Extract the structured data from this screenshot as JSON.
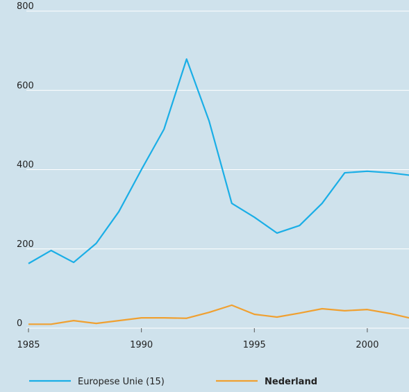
{
  "chart_data": {
    "type": "line",
    "x": [
      1985,
      1986,
      1987,
      1988,
      1989,
      1990,
      1991,
      1992,
      1993,
      1994,
      1995,
      1996,
      1997,
      1998,
      1999,
      2000,
      2001,
      2002
    ],
    "series": [
      {
        "name": "Europese Unie (15)",
        "color": "#1aaee6",
        "values": [
          163,
          196,
          166,
          214,
          294,
          400,
          502,
          679,
          522,
          315,
          280,
          240,
          259,
          315,
          392,
          396,
          392,
          385
        ]
      },
      {
        "name": "Nederland",
        "color": "#f0a030",
        "values": [
          10,
          10,
          19,
          12,
          19,
          26,
          26,
          25,
          40,
          58,
          35,
          28,
          38,
          49,
          44,
          47,
          37,
          24
        ]
      }
    ],
    "xlim": [
      1985,
      2002
    ],
    "xticks": [
      1985,
      1990,
      1995,
      2000
    ],
    "ylim": [
      0,
      800
    ],
    "yticks": [
      0,
      200,
      400,
      600,
      800
    ],
    "grid": true
  }
}
